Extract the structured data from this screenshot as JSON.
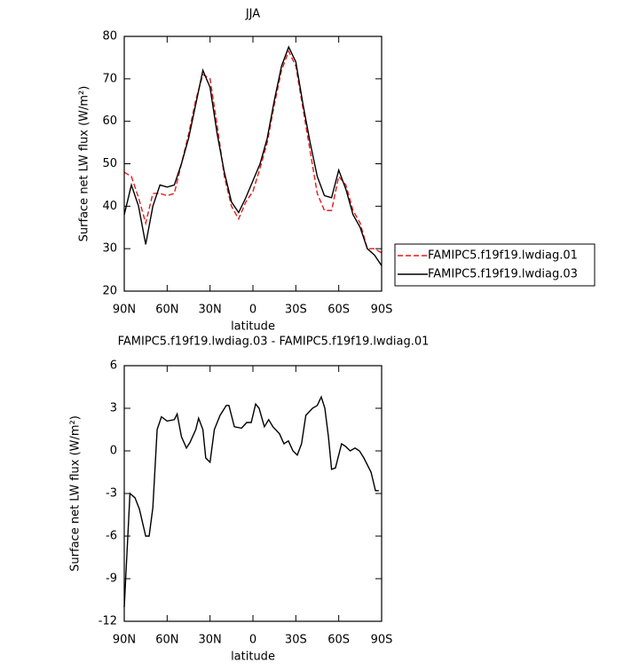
{
  "chart_data": [
    {
      "type": "line",
      "title": "JJA",
      "x_label": "latitude",
      "y_label": "Surface net LW flux (W/m²)",
      "x": [
        90,
        85,
        80,
        75,
        70,
        65,
        60,
        55,
        50,
        45,
        40,
        35,
        30,
        25,
        20,
        15,
        10,
        5,
        0,
        -5,
        -10,
        -15,
        -20,
        -25,
        -30,
        -35,
        -40,
        -45,
        -50,
        -55,
        -60,
        -65,
        -70,
        -75,
        -80,
        -85,
        -90
      ],
      "series": [
        {
          "name": "FAMIPC5.f19f19.lwdiag.01",
          "color": "#e41a1c",
          "linestyle": "dashed",
          "values": [
            48,
            47,
            42,
            36,
            43,
            43,
            42.5,
            43,
            50,
            57,
            65,
            71,
            70,
            59,
            47,
            40,
            37,
            41,
            43.5,
            49,
            55,
            64,
            72,
            76.5,
            73,
            63,
            53,
            43,
            39,
            39,
            47,
            45,
            39,
            36,
            30,
            30,
            29
          ]
        },
        {
          "name": "FAMIPC5.f19f19.lwdiag.03",
          "color": "#000000",
          "linestyle": "solid",
          "values": [
            38,
            45,
            40,
            31,
            40,
            45,
            44.5,
            45,
            50,
            56,
            64,
            72,
            68,
            57,
            48,
            41,
            38.5,
            42,
            46,
            50,
            56,
            65,
            73,
            77.5,
            74,
            64,
            55,
            47,
            42.5,
            42,
            48.5,
            44,
            38,
            35,
            30,
            28.5,
            26
          ]
        }
      ],
      "xlim": [
        90,
        -90
      ],
      "xticks": [
        {
          "value": 90,
          "label": "90N"
        },
        {
          "value": 60,
          "label": "60N"
        },
        {
          "value": 30,
          "label": "30N"
        },
        0,
        {
          "value": -30,
          "label": "30S"
        },
        {
          "value": -60,
          "label": "60S"
        },
        {
          "value": -90,
          "label": "90S"
        }
      ],
      "ylim": [
        20,
        80
      ],
      "yticks": [
        20,
        30,
        40,
        50,
        60,
        70,
        80
      ],
      "grid": false,
      "legend": "right"
    },
    {
      "type": "line",
      "title": "FAMIPC5.f19f19.lwdiag.03 - FAMIPC5.f19f19.lwdiag.01",
      "x_label": "latitude",
      "y_label": "Surface net LW flux (W/m²)",
      "x": [
        90,
        86,
        82.5,
        79.4,
        75,
        72.6,
        70,
        67,
        64,
        60,
        55,
        53,
        50,
        46.5,
        44,
        40,
        38,
        35,
        33,
        30,
        27,
        23,
        18.6,
        16.8,
        13,
        8,
        4.3,
        1.2,
        -1.9,
        -4.3,
        -8,
        -11,
        -14,
        -18.6,
        -21.7,
        -24.8,
        -28,
        -31,
        -34,
        -37,
        -41.6,
        -45,
        -47.8,
        -50.3,
        -52.8,
        -55,
        -57.7,
        -62,
        -65,
        -68,
        -71.4,
        -74.5,
        -77.6,
        -82.6,
        -85.7,
        -88
      ],
      "values": [
        -11,
        -3,
        -3.3,
        -4.1,
        -6,
        -6,
        -4,
        1.5,
        2.4,
        2.1,
        2.2,
        2.6,
        1,
        0.2,
        0.6,
        1.5,
        2.3,
        1.5,
        -0.5,
        -0.8,
        1.5,
        2.5,
        3.2,
        3.2,
        1.7,
        1.6,
        2,
        2,
        3.3,
        3,
        1.7,
        2.2,
        1.7,
        1.2,
        0.5,
        0.7,
        0,
        -0.3,
        0.5,
        2.5,
        3,
        3.2,
        3.8,
        3,
        1,
        -1.3,
        -1.2,
        0.5,
        0.3,
        0,
        0.2,
        0,
        -0.5,
        -1.5,
        -2.8,
        -2.8
      ],
      "color": "#000000",
      "xlim": [
        90,
        -90
      ],
      "xticks": [
        {
          "value": 90,
          "label": "90N"
        },
        {
          "value": 60,
          "label": "60N"
        },
        {
          "value": 30,
          "label": "30N"
        },
        0,
        {
          "value": -30,
          "label": "30S"
        },
        {
          "value": -60,
          "label": "60S"
        },
        {
          "value": -90,
          "label": "90S"
        }
      ],
      "ylim": [
        -12,
        6
      ],
      "yticks": [
        -12,
        -9,
        -6,
        -3,
        0,
        3,
        6
      ],
      "grid": false
    }
  ]
}
